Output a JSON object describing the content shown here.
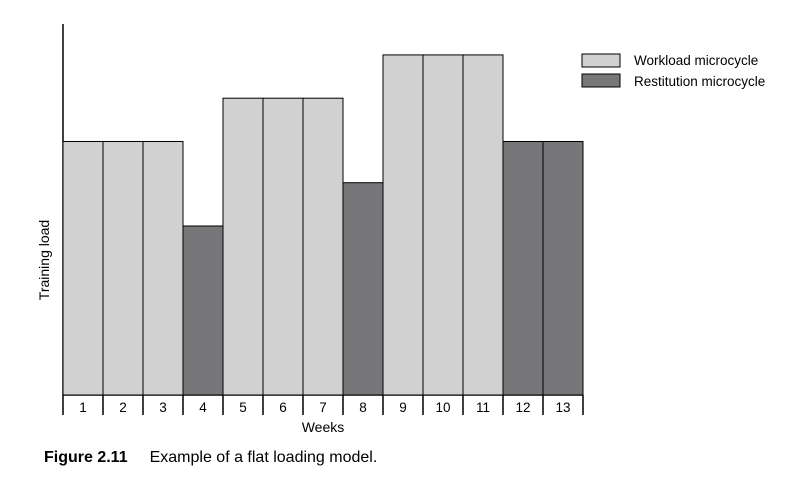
{
  "chart_data": {
    "type": "bar",
    "categories": [
      "1",
      "2",
      "3",
      "4",
      "5",
      "6",
      "7",
      "8",
      "9",
      "10",
      "11",
      "12",
      "13"
    ],
    "values": [
      6.15,
      6.15,
      6.15,
      4.1,
      7.2,
      7.2,
      7.2,
      5.15,
      8.25,
      8.25,
      8.25,
      6.15,
      6.15
    ],
    "types": [
      "workload",
      "workload",
      "workload",
      "restitution",
      "workload",
      "workload",
      "workload",
      "restitution",
      "workload",
      "workload",
      "workload",
      "restitution",
      "restitution"
    ],
    "series": [
      {
        "name": "Workload microcycle",
        "color": "#d1d1d1"
      },
      {
        "name": "Restitution microcycle",
        "color": "#77777a"
      }
    ],
    "xlabel": "Weeks",
    "ylabel": "Training load",
    "ylim": [
      0,
      9
    ],
    "legend_position": "top-right",
    "grid": false
  },
  "caption": {
    "figure": "Figure 2.11",
    "text": "Example of a flat loading model."
  }
}
